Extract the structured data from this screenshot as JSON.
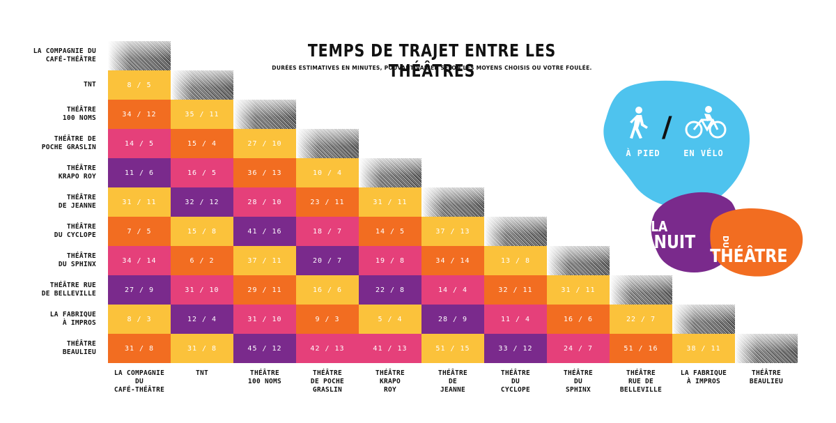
{
  "header": {
    "title": "TEMPS DE TRAJET ENTRE LES THÉÂTRES",
    "subtitle": "DURÉES ESTIMATIVES EN MINUTES, POUVANT VARIER SELON LES MOYENS CHOISIS OU VOTRE FOULÉE."
  },
  "legend": {
    "walk_label": "À PIED",
    "separator": "/",
    "bike_label": "EN VÉLO",
    "walk_icon": "pedestrian-icon",
    "bike_icon": "cyclist-icon"
  },
  "logo": {
    "line1": "LA",
    "line2": "NUIT",
    "line2b": "DU",
    "line3": "THÉÂTRE"
  },
  "colors": {
    "yellow": "#fbc23b",
    "orange": "#f26d21",
    "pink": "#e5407a",
    "purple": "#7a2a8c",
    "blue": "#4ec3ee"
  },
  "row_labels": [
    "LA COMPAGNIE DU\nCAFÉ-THÉÂTRE",
    "TNT",
    "THÉÂTRE\n100 NOMS",
    "THÉÂTRE DE\nPOCHE GRASLIN",
    "THÉÂTRE\nKRAPO ROY",
    "THÉÂTRE\nDE JEANNE",
    "THÉÂTRE\nDU CYCLOPE",
    "THÉÂTRE\nDU SPHINX",
    "THÉÂTRE RUE\nDE BELLEVILLE",
    "LA FABRIQUE\nÀ IMPROS",
    "THÉÂTRE\nBEAULIEU"
  ],
  "col_labels": [
    "LA COMPAGNIE\nDU\nCAFÉ-THÉÂTRE",
    "TNT",
    "THÉÂTRE\n100 NOMS",
    "THÉÂTRE\nDE POCHE\nGRASLIN",
    "THÉÂTRE\nKRAPO\nROY",
    "THÉÂTRE\nDE\nJEANNE",
    "THÉÂTRE\nDU\nCYCLOPE",
    "THÉÂTRE\nDU\nSPHINX",
    "THÉÂTRE\nRUE DE\nBELLEVILLE",
    "LA FABRIQUE\nÀ IMPROS",
    "THÉÂTRE\nBEAULIEU"
  ],
  "matrix": [
    [],
    [
      {
        "v": "8 / 5",
        "c": "yellow"
      }
    ],
    [
      {
        "v": "34 / 12",
        "c": "orange"
      },
      {
        "v": "35 / 11",
        "c": "yellow"
      }
    ],
    [
      {
        "v": "14 / 5",
        "c": "pink"
      },
      {
        "v": "15 / 4",
        "c": "orange"
      },
      {
        "v": "27 / 10",
        "c": "yellow"
      }
    ],
    [
      {
        "v": "11 / 6",
        "c": "purple"
      },
      {
        "v": "16 / 5",
        "c": "pink"
      },
      {
        "v": "36 / 13",
        "c": "orange"
      },
      {
        "v": "10 / 4",
        "c": "yellow"
      }
    ],
    [
      {
        "v": "31 / 11",
        "c": "yellow"
      },
      {
        "v": "32 / 12",
        "c": "purple"
      },
      {
        "v": "28 / 10",
        "c": "pink"
      },
      {
        "v": "23 / 11",
        "c": "orange"
      },
      {
        "v": "31 / 11",
        "c": "yellow"
      }
    ],
    [
      {
        "v": "7 / 5",
        "c": "orange"
      },
      {
        "v": "15 / 8",
        "c": "yellow"
      },
      {
        "v": "41 / 16",
        "c": "purple"
      },
      {
        "v": "18 / 7",
        "c": "pink"
      },
      {
        "v": "14 / 5",
        "c": "orange"
      },
      {
        "v": "37 / 13",
        "c": "yellow"
      }
    ],
    [
      {
        "v": "34 / 14",
        "c": "pink"
      },
      {
        "v": "6 / 2",
        "c": "orange"
      },
      {
        "v": "37 / 11",
        "c": "yellow"
      },
      {
        "v": "20 / 7",
        "c": "purple"
      },
      {
        "v": "19 / 8",
        "c": "pink"
      },
      {
        "v": "34 / 14",
        "c": "orange"
      },
      {
        "v": "13 / 8",
        "c": "yellow"
      }
    ],
    [
      {
        "v": "27 / 9",
        "c": "purple"
      },
      {
        "v": "31 / 10",
        "c": "pink"
      },
      {
        "v": "29 / 11",
        "c": "orange"
      },
      {
        "v": "16 / 6",
        "c": "yellow"
      },
      {
        "v": "22 / 8",
        "c": "purple"
      },
      {
        "v": "14 / 4",
        "c": "pink"
      },
      {
        "v": "32 / 11",
        "c": "orange"
      },
      {
        "v": "31 / 11",
        "c": "yellow"
      }
    ],
    [
      {
        "v": "8 / 3",
        "c": "yellow"
      },
      {
        "v": "12 / 4",
        "c": "purple"
      },
      {
        "v": "31 / 10",
        "c": "pink"
      },
      {
        "v": "9 / 3",
        "c": "orange"
      },
      {
        "v": "5 / 4",
        "c": "yellow"
      },
      {
        "v": "28 / 9",
        "c": "purple"
      },
      {
        "v": "11 / 4",
        "c": "pink"
      },
      {
        "v": "16 / 6",
        "c": "orange"
      },
      {
        "v": "22 / 7",
        "c": "yellow"
      }
    ],
    [
      {
        "v": "31 / 8",
        "c": "orange"
      },
      {
        "v": "31 / 8",
        "c": "yellow"
      },
      {
        "v": "45 / 12",
        "c": "purple"
      },
      {
        "v": "42 / 13",
        "c": "pink"
      },
      {
        "v": "41 / 13",
        "c": "pink"
      },
      {
        "v": "51 / 15",
        "c": "yellow"
      },
      {
        "v": "33 / 12",
        "c": "purple"
      },
      {
        "v": "24 / 7",
        "c": "pink"
      },
      {
        "v": "51 / 16",
        "c": "orange"
      },
      {
        "v": "38 / 11",
        "c": "yellow"
      }
    ]
  ]
}
